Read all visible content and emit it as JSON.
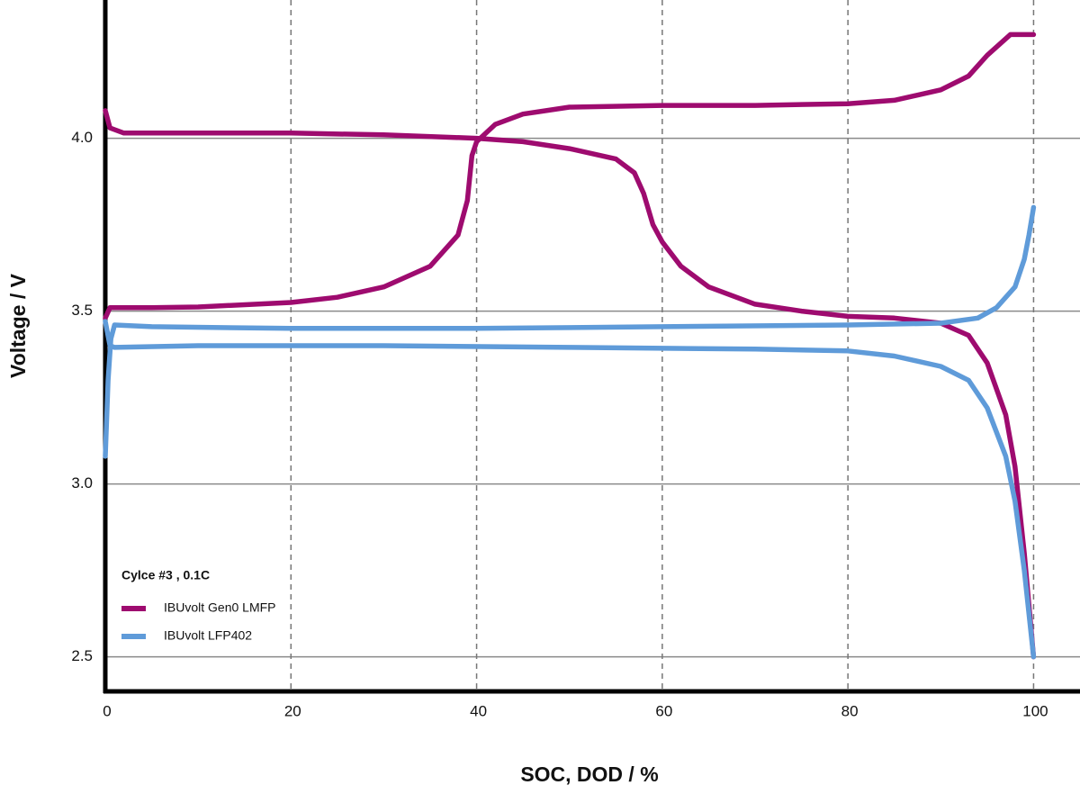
{
  "chart_data": {
    "type": "line",
    "x_label": "SOC, DOD / %",
    "y_label": "Voltage / V",
    "legend_title": "Cylce #3 , 0.1C",
    "xlim": [
      0,
      105
    ],
    "ylim": [
      2.4,
      4.4
    ],
    "xticks": [
      0,
      20,
      40,
      60,
      80,
      100
    ],
    "yticks": [
      2.5,
      {
        "value": 3,
        "label": "3.0"
      },
      3.5,
      {
        "value": 4,
        "label": "4.0"
      }
    ],
    "grid": true,
    "series": [
      {
        "name": "IBUvolt Gen0 LMFP",
        "color": "#9e0b6f",
        "x": [
          0,
          0.5,
          5,
          10,
          20,
          25,
          30,
          35,
          38,
          39,
          39.5,
          40,
          42,
          45,
          50,
          60,
          70,
          80,
          85,
          90,
          93,
          95,
          97.5,
          100,
          null,
          0,
          0.5,
          2,
          10,
          20,
          30,
          40,
          45,
          50,
          55,
          57,
          58,
          59,
          60,
          62,
          65,
          70,
          75,
          80,
          85,
          90,
          93,
          95,
          97,
          98,
          99,
          100
        ],
        "values": [
          3.48,
          3.51,
          3.51,
          3.512,
          3.525,
          3.54,
          3.57,
          3.63,
          3.72,
          3.82,
          3.95,
          3.99,
          4.04,
          4.07,
          4.09,
          4.095,
          4.095,
          4.1,
          4.11,
          4.14,
          4.18,
          4.24,
          4.3,
          4.3,
          null,
          4.08,
          4.03,
          4.015,
          4.015,
          4.015,
          4.01,
          4.0,
          3.99,
          3.97,
          3.94,
          3.9,
          3.84,
          3.75,
          3.7,
          3.63,
          3.57,
          3.52,
          3.5,
          3.485,
          3.48,
          3.465,
          3.43,
          3.35,
          3.2,
          3.05,
          2.8,
          2.5
        ]
      },
      {
        "name": "IBUvolt LFP402",
        "color": "#5f9bd9",
        "x": [
          0,
          0.3,
          0.6,
          1,
          5,
          20,
          40,
          60,
          80,
          90,
          94,
          96,
          98,
          99,
          99.5,
          100,
          null,
          0,
          0.5,
          1,
          10,
          30,
          50,
          70,
          80,
          85,
          90,
          93,
          95,
          97,
          98,
          99,
          100
        ],
        "values": [
          3.08,
          3.3,
          3.42,
          3.46,
          3.455,
          3.45,
          3.45,
          3.455,
          3.46,
          3.465,
          3.48,
          3.51,
          3.57,
          3.65,
          3.72,
          3.8,
          null,
          3.47,
          3.4,
          3.395,
          3.4,
          3.4,
          3.395,
          3.39,
          3.385,
          3.37,
          3.34,
          3.3,
          3.22,
          3.08,
          2.95,
          2.75,
          2.5
        ]
      }
    ]
  }
}
